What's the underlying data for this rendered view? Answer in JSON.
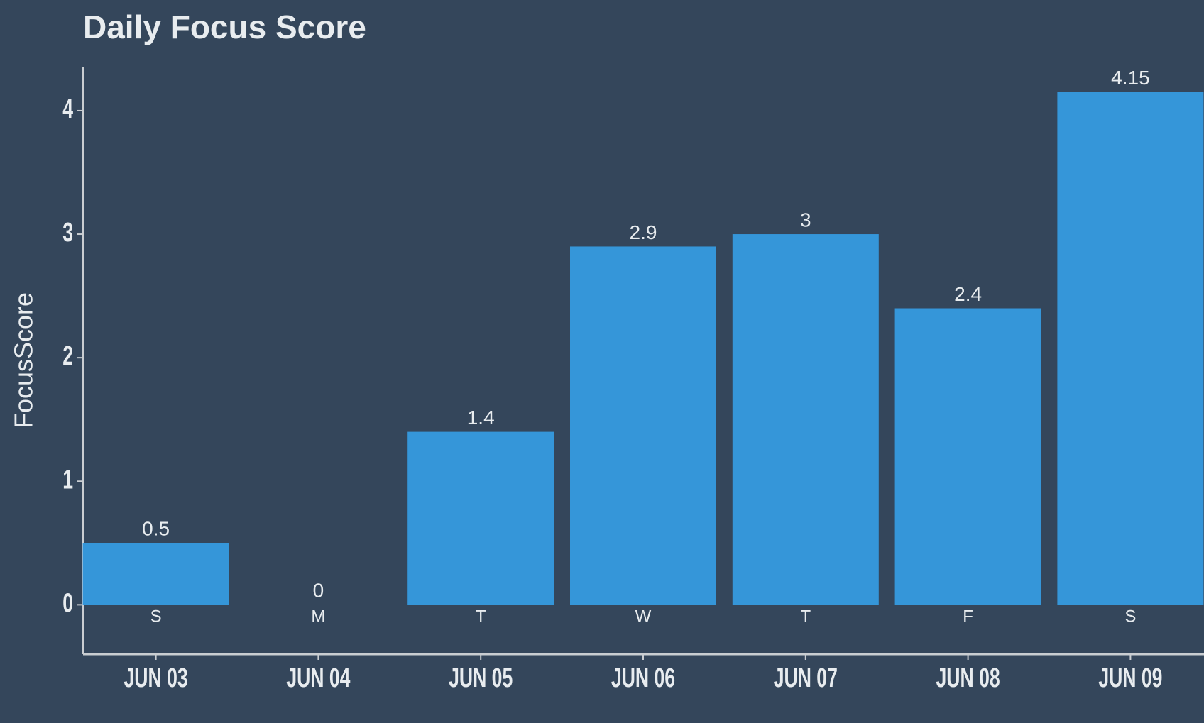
{
  "chart_data": {
    "type": "bar",
    "title": "Daily Focus Score",
    "y_label": "FocusScore",
    "categories": [
      "JUN 03",
      "JUN 04",
      "JUN 05",
      "JUN 06",
      "JUN 07",
      "JUN 08",
      "JUN 09"
    ],
    "weekdays": [
      "S",
      "M",
      "T",
      "W",
      "T",
      "F",
      "S"
    ],
    "values": [
      0.5,
      0,
      1.4,
      2.9,
      3,
      2.4,
      4.15
    ],
    "color": "#3596d9",
    "ylim": [
      -0.4,
      4.35
    ],
    "yticks": [
      0,
      1,
      2,
      3,
      4
    ],
    "grid": false
  }
}
